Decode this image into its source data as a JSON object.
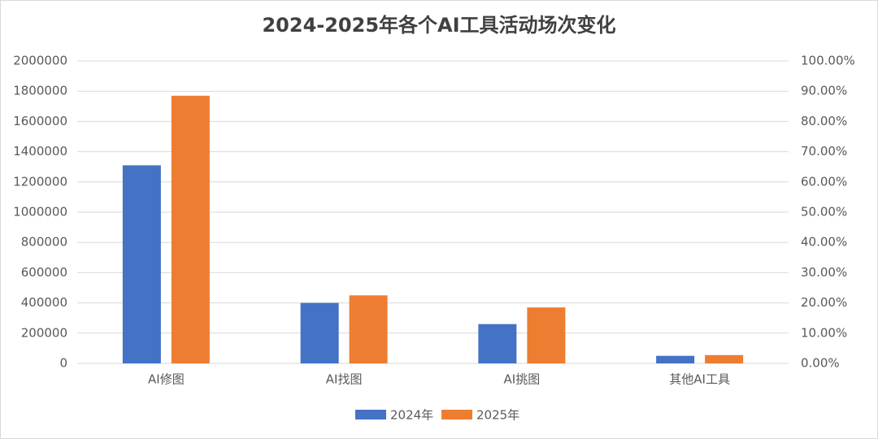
{
  "chart_data": {
    "type": "bar",
    "title": "2024-2025年各个AI工具活动场次变化",
    "categories": [
      "AI修图",
      "AI找图",
      "AI挑图",
      "其他AI工具"
    ],
    "series": [
      {
        "name": "2024年",
        "color": "#4472c4",
        "values": [
          1310000,
          400000,
          260000,
          50000
        ]
      },
      {
        "name": "2025年",
        "color": "#ed7d31",
        "values": [
          1770000,
          450000,
          370000,
          55000
        ]
      }
    ],
    "ylim": [
      0,
      2000000
    ],
    "yticks": [
      0,
      200000,
      400000,
      600000,
      800000,
      1000000,
      1200000,
      1400000,
      1600000,
      1800000,
      2000000
    ],
    "y2lim": [
      0,
      100
    ],
    "y2ticks": [
      {
        "value": 0,
        "label": "0.00%"
      },
      {
        "value": 10,
        "label": "10.00%"
      },
      {
        "value": 20,
        "label": "20.00%"
      },
      {
        "value": 30,
        "label": "30.00%"
      },
      {
        "value": 40,
        "label": "40.00%"
      },
      {
        "value": 50,
        "label": "50.00%"
      },
      {
        "value": 60,
        "label": "60.00%"
      },
      {
        "value": 70,
        "label": "70.00%"
      },
      {
        "value": 80,
        "label": "80.00%"
      },
      {
        "value": 90,
        "label": "90.00%"
      },
      {
        "value": 100,
        "label": "100.00%"
      }
    ],
    "grid": true,
    "legend": "bottom"
  }
}
